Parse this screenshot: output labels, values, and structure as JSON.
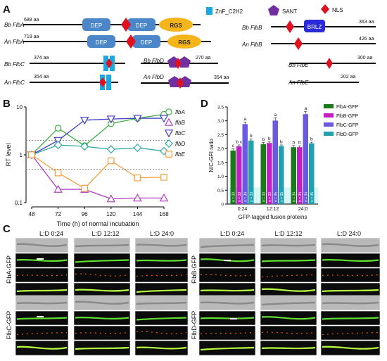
{
  "panel_labels": {
    "a": "A",
    "b": "B",
    "c": "C",
    "d": "D"
  },
  "domain_legend": {
    "znf": "ZnF_C2H2",
    "sant": "SANT",
    "nls": "NLS"
  },
  "proteins": {
    "bb_flba": {
      "name": "Bb FlbA",
      "len": "688 aa",
      "domains": [
        "DEP",
        "DEP",
        "RGS"
      ]
    },
    "an_flba": {
      "name": "An FlbA",
      "len": "719 aa",
      "domains": [
        "DEP",
        "DEP",
        "RGS"
      ]
    },
    "bb_flbb": {
      "name": "Bb FlbB",
      "len": "363 aa",
      "domains": [
        "BRLZ"
      ]
    },
    "an_flbb": {
      "name": "An FlbB",
      "len": "426 aa"
    },
    "bb_flbc": {
      "name": "Bb FlbC",
      "len": "374 aa"
    },
    "an_flbc": {
      "name": "An FlbC",
      "len": "354 aa"
    },
    "bb_flbd": {
      "name": "Bb FlbD",
      "len": "270 aa"
    },
    "an_flbd": {
      "name": "An FlbD",
      "len": "354 aa"
    },
    "bb_flbe": {
      "name": "Bb FlbE",
      "len": "300 aa"
    },
    "an_flbe": {
      "name": "An FlbE",
      "len": "202 aa"
    }
  },
  "colors": {
    "dep": "#4a86c8",
    "rgs": "#f4b51a",
    "brlz": "#2a2ad8",
    "znf": "#19a9e0",
    "sant": "#7030a0",
    "nls": "#e01020"
  },
  "chart_data": [
    {
      "type": "line",
      "panel": "B",
      "xlabel": "Time (h) of normal incubation",
      "ylabel": "RT level",
      "x": [
        48,
        72,
        96,
        120,
        144,
        168
      ],
      "y_scale": "log",
      "ylim": [
        0.1,
        10
      ],
      "yticks": [
        "0.1",
        "1",
        "10"
      ],
      "reference_lines": [
        2,
        0.5
      ],
      "series": [
        {
          "name": "flbA",
          "color": "#40b040",
          "marker": "circle",
          "values": [
            1.0,
            3.6,
            1.55,
            4.5,
            5.8,
            7.0
          ]
        },
        {
          "name": "flbB",
          "color": "#b040c0",
          "marker": "triangle-up",
          "values": [
            1.0,
            0.19,
            0.19,
            0.12,
            0.125,
            0.125
          ]
        },
        {
          "name": "flbC",
          "color": "#4040c0",
          "marker": "triangle-down",
          "values": [
            1.0,
            2.0,
            5.3,
            5.6,
            5.8,
            5.8
          ]
        },
        {
          "name": "flbD",
          "color": "#30a8a8",
          "marker": "diamond",
          "values": [
            1.0,
            1.6,
            1.5,
            1.3,
            1.4,
            1.2
          ]
        },
        {
          "name": "flbE",
          "color": "#f0a040",
          "marker": "square",
          "values": [
            1.0,
            0.42,
            0.2,
            0.75,
            0.33,
            0.34
          ]
        }
      ]
    },
    {
      "type": "bar",
      "panel": "D",
      "xlabel": "GFP-tagged fusion proteins",
      "ylabel": "N/C-GFI ratio",
      "categories": [
        "0:24",
        "12:12",
        "24:0"
      ],
      "ylim": [
        0,
        3.5
      ],
      "yticks": [
        "0",
        "0.5",
        "1.0",
        "1.5",
        "2.0",
        "2.5",
        "3.0",
        "3.5"
      ],
      "series": [
        {
          "name": "FlbA-GFP",
          "color": "#1a7a1a",
          "values": [
            1.93,
            2.16,
            2.05
          ],
          "errors": [
            0.06,
            0.06,
            0.06
          ],
          "letters": [
            "c",
            "b",
            "b"
          ],
          "n": [
            "n = 33",
            "n = 33",
            "n = 34"
          ]
        },
        {
          "name": "FlbB-GFP",
          "color": "#c020c0",
          "values": [
            2.08,
            2.2,
            2.05
          ],
          "errors": [
            0.05,
            0.05,
            0.05
          ],
          "letters": [
            "b c",
            "b",
            "b"
          ],
          "n": [
            "n = 33",
            "n = 33",
            "n = 34"
          ]
        },
        {
          "name": "FlbC-GFP",
          "color": "#6a5ae0",
          "values": [
            2.88,
            3.01,
            3.24
          ],
          "errors": [
            0.08,
            0.1,
            0.1
          ],
          "letters": [
            "a",
            "a",
            "a"
          ],
          "n": [
            "n = 34",
            "n = 35",
            "n = 34"
          ]
        },
        {
          "name": "FlbD-GFP",
          "color": "#20a0b0",
          "values": [
            2.29,
            2.09,
            2.19
          ],
          "errors": [
            0.06,
            0.04,
            0.04
          ],
          "letters": [
            "b",
            "b",
            "b"
          ],
          "n": [
            "n = 33",
            "n = 35",
            "n = 35"
          ]
        }
      ]
    }
  ],
  "micro": {
    "col_left": [
      "L:D 0:24",
      "L:D 12:12",
      "L:D 24:0"
    ],
    "col_right": [
      "L:D 0:24",
      "L:D 12:12",
      "L:D 24:0"
    ],
    "rows": [
      "FlbA-GFP",
      "FlbC-GFP",
      "FlbB-GFP",
      "FlbD-GFP"
    ]
  }
}
